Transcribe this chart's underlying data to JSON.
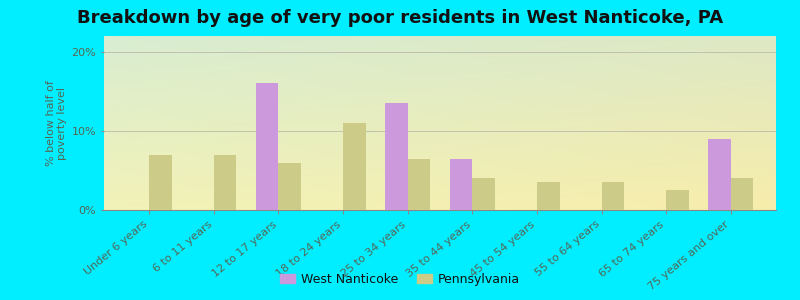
{
  "title": "Breakdown by age of very poor residents in West Nanticoke, PA",
  "ylabel": "% below half of\npoverty level",
  "categories": [
    "Under 6 years",
    "6 to 11 years",
    "12 to 17 years",
    "18 to 24 years",
    "25 to 34 years",
    "35 to 44 years",
    "45 to 54 years",
    "55 to 64 years",
    "65 to 74 years",
    "75 years and over"
  ],
  "west_nanticoke": [
    0,
    0,
    16.0,
    0,
    13.5,
    6.5,
    0,
    0,
    0,
    9.0
  ],
  "pennsylvania": [
    7.0,
    7.0,
    6.0,
    11.0,
    6.5,
    4.0,
    3.5,
    3.5,
    2.5,
    4.0
  ],
  "wn_color": "#cc99dd",
  "pa_color": "#cccc88",
  "background_outer": "#00eeff",
  "ylim": [
    0,
    22
  ],
  "yticks": [
    0,
    10,
    20
  ],
  "ytick_labels": [
    "0%",
    "10%",
    "20%"
  ],
  "bar_width": 0.35,
  "legend_wn": "West Nanticoke",
  "legend_pa": "Pennsylvania",
  "title_fontsize": 13,
  "axis_label_fontsize": 8,
  "tick_fontsize": 8,
  "grid_color": "#bbbbaa",
  "text_color": "#556655"
}
